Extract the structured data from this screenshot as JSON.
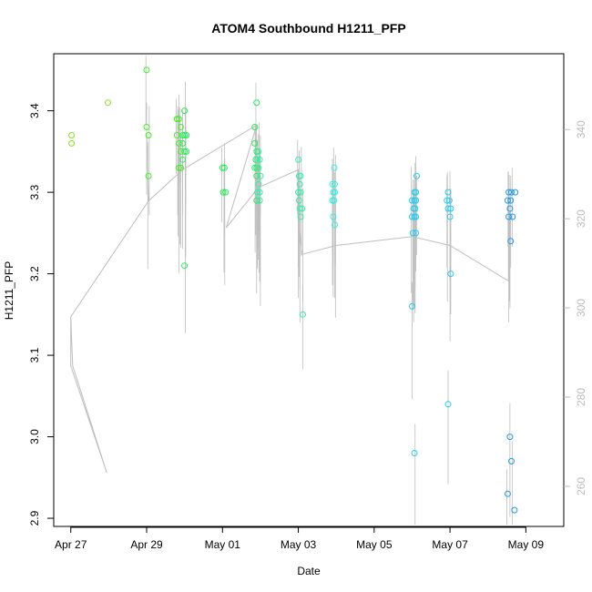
{
  "chart_data": {
    "type": "scatter",
    "title": "ATOM4 Southbound H1211_PFP",
    "xlabel": "Date",
    "ylabel": "H1211_PFP",
    "x_tick_labels": [
      "Apr 27",
      "Apr 29",
      "May 01",
      "May 03",
      "May 05",
      "May 07",
      "May 09"
    ],
    "x_tick_days": [
      0,
      2,
      4,
      6,
      8,
      10,
      12
    ],
    "xlim_days": [
      -0.45,
      13.0
    ],
    "ylim": [
      2.89,
      3.47
    ],
    "y_ticks": [
      2.9,
      3.0,
      3.1,
      3.2,
      3.3,
      3.4
    ],
    "y_tick_labels": [
      "2.9",
      "3.0",
      "3.1",
      "3.2",
      "3.3",
      "3.4"
    ],
    "y2lim": [
      251,
      357
    ],
    "y2_ticks": [
      260,
      280,
      300,
      320,
      340
    ],
    "y2_tick_labels": [
      "260",
      "280",
      "300",
      "320",
      "340"
    ],
    "grid": false,
    "legend": "none",
    "colors": {
      "axis": "#000000",
      "secondary_axis": "#bbbbbb",
      "trace": "#bebebe",
      "point_gradient": [
        "#88dd22",
        "#44ee22",
        "#22ee55",
        "#33eeaa",
        "#33eedd",
        "#22ccee",
        "#2299dd"
      ]
    },
    "points": [
      {
        "x": 0.02,
        "y": 3.37
      },
      {
        "x": 0.02,
        "y": 3.36
      },
      {
        "x": 0.98,
        "y": 3.41
      },
      {
        "x": 2.0,
        "y": 3.45
      },
      {
        "x": 2.0,
        "y": 3.38
      },
      {
        "x": 2.05,
        "y": 3.37
      },
      {
        "x": 2.05,
        "y": 3.32
      },
      {
        "x": 2.8,
        "y": 3.39
      },
      {
        "x": 2.85,
        "y": 3.39
      },
      {
        "x": 2.9,
        "y": 3.38
      },
      {
        "x": 2.95,
        "y": 3.37
      },
      {
        "x": 3.0,
        "y": 3.4
      },
      {
        "x": 2.8,
        "y": 3.37
      },
      {
        "x": 2.85,
        "y": 3.36
      },
      {
        "x": 2.9,
        "y": 3.35
      },
      {
        "x": 2.95,
        "y": 3.36
      },
      {
        "x": 3.0,
        "y": 3.37
      },
      {
        "x": 3.05,
        "y": 3.37
      },
      {
        "x": 2.85,
        "y": 3.33
      },
      {
        "x": 2.9,
        "y": 3.33
      },
      {
        "x": 3.0,
        "y": 3.35
      },
      {
        "x": 3.05,
        "y": 3.35
      },
      {
        "x": 2.95,
        "y": 3.34
      },
      {
        "x": 3.0,
        "y": 3.21
      },
      {
        "x": 4.0,
        "y": 3.33
      },
      {
        "x": 4.05,
        "y": 3.33
      },
      {
        "x": 4.02,
        "y": 3.3
      },
      {
        "x": 4.08,
        "y": 3.3
      },
      {
        "x": 4.9,
        "y": 3.41
      },
      {
        "x": 4.85,
        "y": 3.38
      },
      {
        "x": 4.85,
        "y": 3.36
      },
      {
        "x": 4.9,
        "y": 3.35
      },
      {
        "x": 4.95,
        "y": 3.35
      },
      {
        "x": 4.88,
        "y": 3.34
      },
      {
        "x": 4.92,
        "y": 3.34
      },
      {
        "x": 4.98,
        "y": 3.34
      },
      {
        "x": 4.85,
        "y": 3.33
      },
      {
        "x": 4.9,
        "y": 3.33
      },
      {
        "x": 4.95,
        "y": 3.33
      },
      {
        "x": 4.9,
        "y": 3.32
      },
      {
        "x": 5.0,
        "y": 3.32
      },
      {
        "x": 4.95,
        "y": 3.31
      },
      {
        "x": 4.92,
        "y": 3.3
      },
      {
        "x": 4.98,
        "y": 3.3
      },
      {
        "x": 4.9,
        "y": 3.29
      },
      {
        "x": 4.98,
        "y": 3.29
      },
      {
        "x": 6.0,
        "y": 3.34
      },
      {
        "x": 6.02,
        "y": 3.32
      },
      {
        "x": 6.06,
        "y": 3.32
      },
      {
        "x": 6.04,
        "y": 3.31
      },
      {
        "x": 6.0,
        "y": 3.3
      },
      {
        "x": 6.06,
        "y": 3.3
      },
      {
        "x": 6.02,
        "y": 3.29
      },
      {
        "x": 6.04,
        "y": 3.28
      },
      {
        "x": 6.1,
        "y": 3.28
      },
      {
        "x": 6.06,
        "y": 3.27
      },
      {
        "x": 6.12,
        "y": 3.15
      },
      {
        "x": 6.95,
        "y": 3.33
      },
      {
        "x": 6.9,
        "y": 3.31
      },
      {
        "x": 6.96,
        "y": 3.31
      },
      {
        "x": 6.92,
        "y": 3.3
      },
      {
        "x": 6.96,
        "y": 3.3
      },
      {
        "x": 6.9,
        "y": 3.29
      },
      {
        "x": 6.94,
        "y": 3.29
      },
      {
        "x": 6.92,
        "y": 3.27
      },
      {
        "x": 6.96,
        "y": 3.26
      },
      {
        "x": 9.12,
        "y": 3.32
      },
      {
        "x": 9.1,
        "y": 3.3
      },
      {
        "x": 9.06,
        "y": 3.3
      },
      {
        "x": 9.0,
        "y": 3.29
      },
      {
        "x": 9.06,
        "y": 3.29
      },
      {
        "x": 9.1,
        "y": 3.29
      },
      {
        "x": 9.04,
        "y": 3.28
      },
      {
        "x": 9.08,
        "y": 3.28
      },
      {
        "x": 9.0,
        "y": 3.27
      },
      {
        "x": 9.06,
        "y": 3.27
      },
      {
        "x": 9.1,
        "y": 3.27
      },
      {
        "x": 9.02,
        "y": 3.25
      },
      {
        "x": 9.1,
        "y": 3.25
      },
      {
        "x": 9.0,
        "y": 3.16
      },
      {
        "x": 9.06,
        "y": 2.98
      },
      {
        "x": 9.95,
        "y": 3.3
      },
      {
        "x": 9.92,
        "y": 3.29
      },
      {
        "x": 9.98,
        "y": 3.29
      },
      {
        "x": 9.95,
        "y": 3.28
      },
      {
        "x": 10.02,
        "y": 3.28
      },
      {
        "x": 10.0,
        "y": 3.27
      },
      {
        "x": 10.02,
        "y": 3.2
      },
      {
        "x": 9.95,
        "y": 3.04
      },
      {
        "x": 11.55,
        "y": 3.3
      },
      {
        "x": 11.6,
        "y": 3.29
      },
      {
        "x": 11.52,
        "y": 3.29
      },
      {
        "x": 11.58,
        "y": 3.28
      },
      {
        "x": 11.55,
        "y": 3.27
      },
      {
        "x": 11.65,
        "y": 3.27
      },
      {
        "x": 11.62,
        "y": 3.3
      },
      {
        "x": 11.72,
        "y": 3.3
      },
      {
        "x": 11.6,
        "y": 3.24
      },
      {
        "x": 11.58,
        "y": 3.0
      },
      {
        "x": 11.62,
        "y": 2.97
      },
      {
        "x": 11.52,
        "y": 2.93
      },
      {
        "x": 11.7,
        "y": 2.91
      }
    ],
    "trace_y2": [
      {
        "x": 0.0,
        "y": 298
      },
      {
        "x": 0.0,
        "y": 287
      },
      {
        "x": 0.95,
        "y": 263
      },
      {
        "x": 0.05,
        "y": 287
      },
      {
        "x": 0.0,
        "y": 298
      },
      {
        "x": 2.05,
        "y": 324
      },
      {
        "x": 2.0,
        "y": 339
      },
      {
        "x": 2.05,
        "y": 324
      },
      {
        "x": 2.95,
        "y": 331
      },
      {
        "x": 4.9,
        "y": 341
      },
      {
        "x": 4.1,
        "y": 318
      },
      {
        "x": 4.95,
        "y": 327
      },
      {
        "x": 6.0,
        "y": 331
      },
      {
        "x": 6.0,
        "y": 320
      },
      {
        "x": 6.1,
        "y": 312
      },
      {
        "x": 7.0,
        "y": 314
      },
      {
        "x": 9.0,
        "y": 316
      },
      {
        "x": 10.0,
        "y": 314
      },
      {
        "x": 11.55,
        "y": 306
      }
    ]
  }
}
